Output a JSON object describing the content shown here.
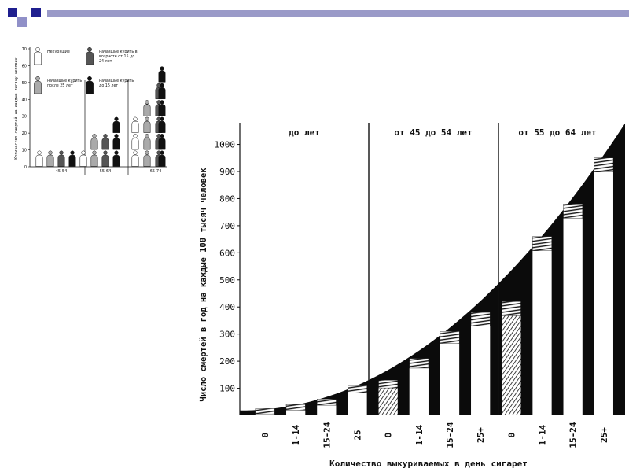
{
  "theme": {
    "header_square_dark": "#1f1f8f",
    "header_square_light": "#9090c8",
    "header_bar": "#9a9ac8"
  },
  "chart_data": [
    {
      "type": "pictogram-bar",
      "title": "",
      "ylabel": "Количество смертей на каждые тысячу человек",
      "ylim": [
        0,
        70
      ],
      "yticks": [
        0,
        10,
        20,
        30,
        40,
        50,
        60,
        70
      ],
      "groups": [
        "45-54",
        "55-64",
        "65-74"
      ],
      "legend": [
        {
          "label": "Некурящие",
          "color": "#ffffff"
        },
        {
          "label": "начавшие курить в возрасте от 15 до 24 лет",
          "color": "#555555"
        },
        {
          "label": "начавшие курить после 25 лет",
          "color": "#aaaaaa"
        },
        {
          "label": "начавшие курить до 15 лет",
          "color": "#111111"
        }
      ],
      "series": [
        {
          "name": "Некурящие",
          "values": [
            3,
            13,
            27
          ]
        },
        {
          "name": "начавшие курить после 25 лет",
          "values": [
            6,
            17,
            42
          ]
        },
        {
          "name": "начавшие курить в возрасте от 15 до 24 лет",
          "values": [
            8,
            20,
            52
          ]
        },
        {
          "name": "начавшие курить до 15 лет",
          "values": [
            11,
            25,
            63
          ]
        }
      ]
    },
    {
      "type": "bar",
      "ylabel": "Число смертей в год на каждые 100 тысяч человек",
      "xlabel": "Количество выкуриваемых в день сигарет",
      "ylim": [
        0,
        1080
      ],
      "yticks": [
        100,
        200,
        300,
        400,
        500,
        600,
        700,
        800,
        900,
        1000
      ],
      "sections": [
        "до лет",
        "от 45 до 54 лет",
        "от 55 до 64 лет"
      ],
      "categories": [
        "0",
        "1-14",
        "15-24",
        "25",
        "0",
        "1-14",
        "15-24",
        "25+",
        "0",
        "1-14",
        "15-24",
        "25+"
      ],
      "values": [
        25,
        40,
        60,
        110,
        130,
        210,
        310,
        380,
        420,
        660,
        780,
        950
      ]
    }
  ]
}
